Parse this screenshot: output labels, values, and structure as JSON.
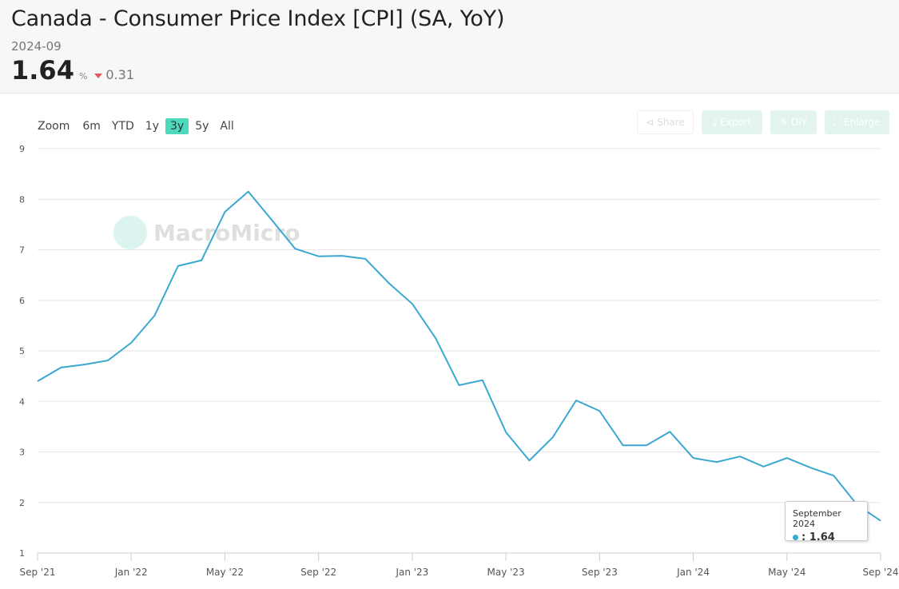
{
  "header": {
    "title": "Canada - Consumer Price Index [CPI] (SA, YoY)",
    "date": "2024-09",
    "value": "1.64",
    "unit": "%",
    "change": "0.31",
    "change_direction": "down",
    "change_color": "#e55a5a"
  },
  "zoom": {
    "label": "Zoom",
    "options": [
      "6m",
      "YTD",
      "1y",
      "3y",
      "5y",
      "All"
    ],
    "active": "3y"
  },
  "toolbar": {
    "share": "Share",
    "export": "Export",
    "diy": "DIY",
    "enlarge": "Enlarge"
  },
  "watermark": "MacroMicro",
  "tooltip": {
    "title": "September 2024",
    "value": ": 1.64"
  },
  "chart_data": {
    "type": "line",
    "line_color": "#3aa8d0",
    "x": [
      "2021-09",
      "2021-10",
      "2021-11",
      "2021-12",
      "2022-01",
      "2022-02",
      "2022-03",
      "2022-04",
      "2022-05",
      "2022-06",
      "2022-07",
      "2022-08",
      "2022-09",
      "2022-10",
      "2022-11",
      "2022-12",
      "2023-01",
      "2023-02",
      "2023-03",
      "2023-04",
      "2023-05",
      "2023-06",
      "2023-07",
      "2023-08",
      "2023-09",
      "2023-10",
      "2023-11",
      "2023-12",
      "2024-01",
      "2024-02",
      "2024-03",
      "2024-04",
      "2024-05",
      "2024-06",
      "2024-07",
      "2024-08",
      "2024-09"
    ],
    "values": [
      4.4,
      4.67,
      4.73,
      4.81,
      5.16,
      5.7,
      6.68,
      6.79,
      7.75,
      8.15,
      7.59,
      7.02,
      6.87,
      6.88,
      6.82,
      6.34,
      5.93,
      5.25,
      4.32,
      4.42,
      3.39,
      2.83,
      3.29,
      4.02,
      3.81,
      3.13,
      3.13,
      3.4,
      2.88,
      2.8,
      2.91,
      2.71,
      2.88,
      2.69,
      2.53,
      1.95,
      1.64
    ],
    "ylim": [
      1,
      9
    ],
    "yticks": [
      "1",
      "2",
      "3",
      "4",
      "5",
      "6",
      "7",
      "8",
      "9"
    ],
    "xticks": [
      "Sep '21",
      "Jan '22",
      "May '22",
      "Sep '22",
      "Jan '23",
      "May '23",
      "Sep '23",
      "Jan '24",
      "May '24",
      "Sep '24"
    ],
    "grid": true
  }
}
